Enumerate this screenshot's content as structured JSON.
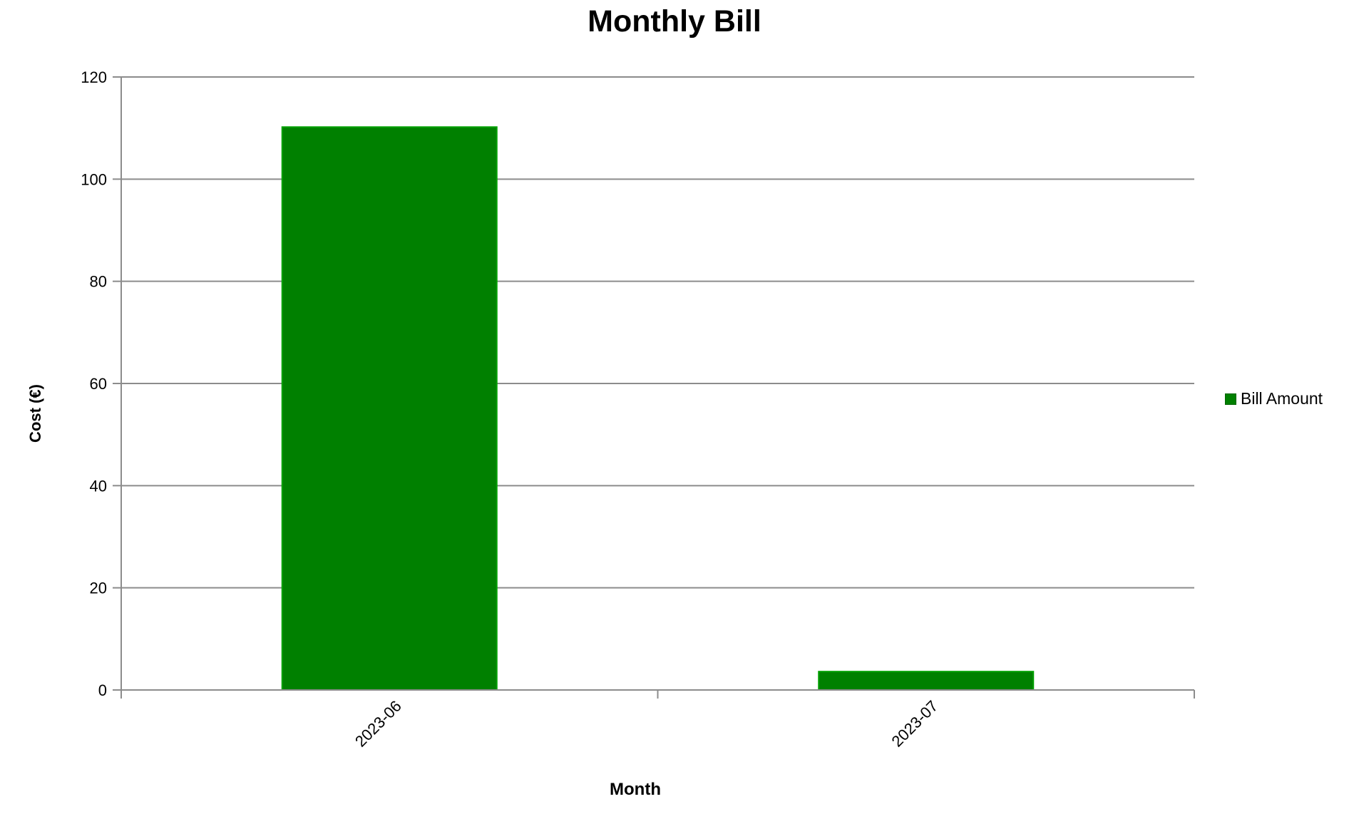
{
  "chart_data": {
    "type": "bar",
    "title": "Monthly Bill",
    "xlabel": "Month",
    "ylabel": "Cost (€)",
    "categories": [
      "2023-06",
      "2023-07"
    ],
    "series": [
      {
        "name": "Bill Amount",
        "values": [
          110.2,
          3.6
        ],
        "color": "#008000"
      }
    ],
    "ylim": [
      0,
      120
    ],
    "yticks": [
      0,
      20,
      40,
      60,
      80,
      100,
      120
    ],
    "grid": true,
    "legend_position": "right"
  }
}
